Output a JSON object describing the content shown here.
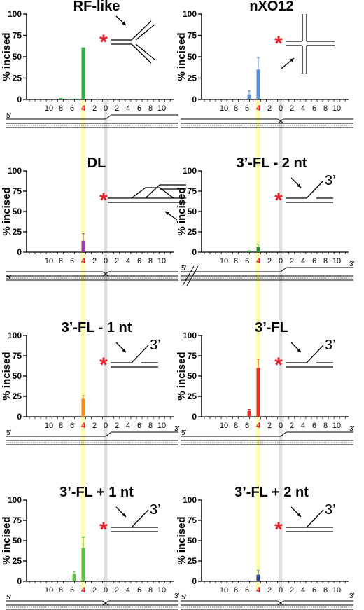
{
  "figure": {
    "x_ticks": [
      "10",
      "8",
      "6",
      "4",
      "2",
      "0",
      "2",
      "4",
      "6",
      "8",
      "10"
    ],
    "highlight_tick": "4",
    "highlight_color": "#ffff99",
    "zero_band_color": "#dddddd",
    "asterisk": "*",
    "asterisk_color": "#e8202a",
    "label_5p": "5’",
    "label_3p": "3’"
  },
  "chart_data": [
    {
      "type": "bar",
      "title": "RF-like",
      "ylabel": "% incised",
      "ylim": [
        0,
        100
      ],
      "yticks": [
        "0",
        "25",
        "50",
        "75",
        "100"
      ],
      "substrate": "fork",
      "strand": "fork",
      "series": [
        {
          "values": [
            {
              "pos": "8",
              "value": 1.5,
              "err": 0
            },
            {
              "pos": "6",
              "value": 1,
              "err": 0
            },
            {
              "pos": "4",
              "value": 61,
              "err": 0
            }
          ],
          "color": "#2bb34a"
        }
      ]
    },
    {
      "type": "bar",
      "title": "nXO12",
      "ylabel": "% incised",
      "ylim": [
        0,
        100
      ],
      "yticks": [
        "0",
        "25",
        "50",
        "75",
        "100"
      ],
      "substrate": "holliday",
      "strand": "holliday",
      "series": [
        {
          "values": [
            {
              "pos": "6",
              "value": 6,
              "err": 4
            },
            {
              "pos": "4",
              "value": 35,
              "err": 14
            }
          ],
          "color": "#5b8fd1"
        }
      ]
    },
    {
      "type": "bar",
      "title": "DL",
      "ylabel": "% incised",
      "ylim": [
        0,
        100
      ],
      "yticks": [
        "0",
        "25",
        "50",
        "75",
        "100"
      ],
      "substrate": "dloop",
      "strand": "dloop",
      "series": [
        {
          "values": [
            {
              "pos": "4",
              "value": 14,
              "err": 9
            }
          ],
          "color": "#a23fb5"
        }
      ]
    },
    {
      "type": "bar",
      "title": "3’-FL - 2 nt",
      "ylabel": "% incised",
      "ylim": [
        0,
        100
      ],
      "yticks": [
        "0",
        "25",
        "50",
        "75",
        "100"
      ],
      "substrate": "flap",
      "strand": "flap",
      "series": [
        {
          "values": [
            {
              "pos": "6",
              "value": 2,
              "err": 0
            },
            {
              "pos": "4",
              "value": 6,
              "err": 4
            }
          ],
          "color": "#2e8b3d"
        }
      ]
    },
    {
      "type": "bar",
      "title": "3’-FL - 1 nt",
      "ylabel": "% incised",
      "ylim": [
        0,
        100
      ],
      "yticks": [
        "0",
        "25",
        "50",
        "75",
        "100"
      ],
      "substrate": "flap",
      "strand": "flap",
      "series": [
        {
          "values": [
            {
              "pos": "4",
              "value": 22,
              "err": 4
            }
          ],
          "color": "#f08a24"
        }
      ]
    },
    {
      "type": "bar",
      "title": "3’-FL",
      "ylabel": "% incised",
      "ylim": [
        0,
        100
      ],
      "yticks": [
        "0",
        "25",
        "50",
        "75",
        "100"
      ],
      "substrate": "flap",
      "strand": "flap",
      "series": [
        {
          "values": [
            {
              "pos": "6",
              "value": 7,
              "err": 2
            },
            {
              "pos": "4",
              "value": 60,
              "err": 11
            }
          ],
          "color": "#e53027"
        }
      ]
    },
    {
      "type": "bar",
      "title": "3’-FL + 1 nt",
      "ylabel": "% incised",
      "ylim": [
        0,
        100
      ],
      "yticks": [
        "0",
        "25",
        "50",
        "75",
        "100"
      ],
      "substrate": "flapcross",
      "strand": "flapcross",
      "series": [
        {
          "values": [
            {
              "pos": "6",
              "value": 9,
              "err": 3
            },
            {
              "pos": "4",
              "value": 41,
              "err": 13
            }
          ],
          "color": "#5fbf4a"
        }
      ]
    },
    {
      "type": "bar",
      "title": "3’-FL + 2 nt",
      "ylabel": "% incised",
      "ylim": [
        0,
        100
      ],
      "yticks": [
        "0",
        "25",
        "50",
        "75",
        "100"
      ],
      "substrate": "flapcross",
      "strand": "flapcross",
      "series": [
        {
          "values": [
            {
              "pos": "6",
              "value": 1,
              "err": 0
            },
            {
              "pos": "4",
              "value": 8,
              "err": 5
            }
          ],
          "color": "#2a3f8f"
        }
      ]
    }
  ]
}
